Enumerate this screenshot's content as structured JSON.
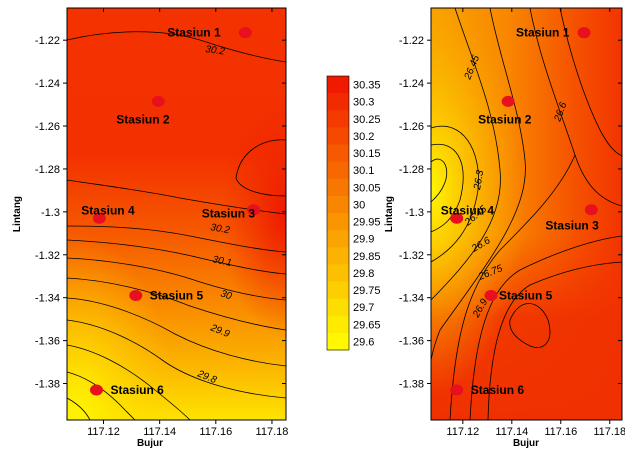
{
  "chart_data": [
    {
      "type": "contour",
      "xlabel": "Bujur",
      "ylabel": "Lintang",
      "xlim": [
        117.107,
        117.185
      ],
      "ylim": [
        -1.397,
        -1.205
      ],
      "x_ticks": [
        "117.12",
        "117.14",
        "117.16",
        "117.18"
      ],
      "y_ticks": [
        "-1.22",
        "-1.24",
        "-1.26",
        "-1.28",
        "-1.3",
        "-1.32",
        "-1.34",
        "-1.36",
        "-1.38"
      ],
      "contour_levels_labeled": [
        "30.2",
        "30.2",
        "30.1",
        "30",
        "29.9",
        "29.8"
      ],
      "stations": [
        {
          "name": "Stasiun 1",
          "x": 117.1705,
          "y": -1.2165
        },
        {
          "name": "Stasiun 2",
          "x": 117.1395,
          "y": -1.2485
        },
        {
          "name": "Stasiun 3",
          "x": 117.1735,
          "y": -1.299
        },
        {
          "name": "Stasiun 4",
          "x": 117.1185,
          "y": -1.303
        },
        {
          "name": "Stasiun 5",
          "x": 117.1315,
          "y": -1.339
        },
        {
          "name": "Stasiun 6",
          "x": 117.1175,
          "y": -1.383
        }
      ]
    },
    {
      "type": "contour",
      "xlabel": "Bujur",
      "ylabel": "Lintang",
      "xlim": [
        117.107,
        117.185
      ],
      "ylim": [
        -1.397,
        -1.205
      ],
      "x_ticks": [
        "117.12",
        "117.14",
        "117.16",
        "117.18"
      ],
      "y_ticks": [
        "-1.22",
        "-1.24",
        "-1.26",
        "-1.28",
        "-1.3",
        "-1.32",
        "-1.34",
        "-1.36",
        "-1.38"
      ],
      "contour_levels_labeled": [
        "26.45",
        "26.6",
        "26.3",
        "26.45",
        "26.6",
        "26.75",
        "26.9"
      ],
      "stations": [
        {
          "name": "Stasiun 1",
          "x": 117.1695,
          "y": -1.2165
        },
        {
          "name": "Stasiun 2",
          "x": 117.1385,
          "y": -1.2485
        },
        {
          "name": "Stasiun 3",
          "x": 117.1725,
          "y": -1.299
        },
        {
          "name": "Stasiun 4",
          "x": 117.1175,
          "y": -1.303
        },
        {
          "name": "Stasiun 5",
          "x": 117.1315,
          "y": -1.339
        },
        {
          "name": "Stasiun 6",
          "x": 117.1175,
          "y": -1.383
        }
      ]
    }
  ],
  "colorbar": {
    "values": [
      "30.35",
      "30.3",
      "30.25",
      "30.2",
      "30.15",
      "30.1",
      "30.05",
      "30",
      "29.95",
      "29.9",
      "29.85",
      "29.8",
      "29.75",
      "29.7",
      "29.65",
      "29.6"
    ],
    "colors": [
      "#f01a00",
      "#f22a00",
      "#f43a00",
      "#f54900",
      "#f65900",
      "#f76800",
      "#f87700",
      "#f98600",
      "#fa9500",
      "#fba300",
      "#fcb200",
      "#fdc000",
      "#fdcf00",
      "#fedd00",
      "#feeb00",
      "#fff800"
    ]
  }
}
